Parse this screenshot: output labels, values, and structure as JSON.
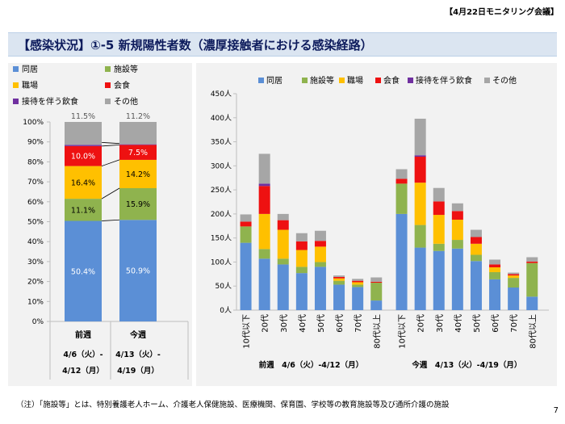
{
  "header": {
    "meeting_label": "【4月22日モニタリング会議】"
  },
  "title": "【感染状況】①-5 新規陽性者数（濃厚接触者における感染経路）",
  "footnote": "（注）「施設等」とは、特別養護老人ホーム、介護老人保健施設、医療機関、保育園、学校等の教育施設等及び通所介護の施設",
  "page_number": "7",
  "colors": {
    "同居": "#5b8fd6",
    "施設等": "#8fb34e",
    "職場": "#ffc000",
    "会食": "#ee1111",
    "接待を伴う飲食": "#7030a0",
    "その他": "#a6a6a6"
  },
  "chart_data": [
    {
      "type": "bar",
      "stacked": true,
      "percent": true,
      "title": "",
      "legend": [
        "同居",
        "施設等",
        "職場",
        "会食",
        "接待を伴う飲食",
        "その他"
      ],
      "legend_placement": "top",
      "categories": [
        "前週",
        "今週"
      ],
      "category_dates": [
        [
          "4/6（火）-",
          "4/12（月）"
        ],
        [
          "4/13（火）-",
          "4/19（月）"
        ]
      ],
      "series": [
        {
          "name": "同居",
          "values": [
            50.4,
            50.9
          ],
          "labels": [
            "50.4%",
            "50.9%"
          ]
        },
        {
          "name": "施設等",
          "values": [
            11.1,
            15.9
          ],
          "labels": [
            "11.1%",
            "15.9%"
          ]
        },
        {
          "name": "職場",
          "values": [
            16.4,
            14.2
          ],
          "labels": [
            "16.4%",
            "14.2%"
          ]
        },
        {
          "name": "会食",
          "values": [
            10.0,
            7.5
          ],
          "labels": [
            "10.0%",
            "7.5%"
          ]
        },
        {
          "name": "接待を伴う飲食",
          "values": [
            0.6,
            0.3
          ],
          "labels": [
            "0.6%",
            "0.3%"
          ]
        },
        {
          "name": "その他",
          "values": [
            11.5,
            11.2
          ],
          "labels": [
            "11.5%",
            "11.2%"
          ]
        }
      ],
      "ylim": [
        0,
        100
      ],
      "yticks": [
        "0%",
        "10%",
        "20%",
        "30%",
        "40%",
        "50%",
        "60%",
        "70%",
        "80%",
        "90%",
        "100%"
      ]
    },
    {
      "type": "bar",
      "stacked": true,
      "title": "",
      "legend": [
        "同居",
        "施設等",
        "職場",
        "会食",
        "接待を伴う飲食",
        "その他"
      ],
      "legend_placement": "top",
      "groups": [
        {
          "label": "前週　4/6（火）-4/12（月）",
          "categories": [
            "10代以下",
            "20代",
            "30代",
            "40代",
            "50代",
            "60代",
            "70代",
            "80代以上"
          ],
          "stacks": [
            [
              140,
              34,
              0,
              10,
              0,
              15
            ],
            [
              107,
              20,
              73,
              58,
              5,
              62
            ],
            [
              95,
              12,
              60,
              20,
              0,
              13
            ],
            [
              77,
              13,
              35,
              18,
              0,
              17
            ],
            [
              90,
              10,
              32,
              12,
              0,
              21
            ],
            [
              53,
              8,
              5,
              3,
              0,
              3
            ],
            [
              48,
              5,
              5,
              3,
              0,
              4
            ],
            [
              20,
              37,
              0,
              2,
              0,
              9
            ]
          ]
        },
        {
          "label": "今週　4/13（火）-4/19（月）",
          "categories": [
            "10代以下",
            "20代",
            "30代",
            "40代",
            "50代",
            "60代",
            "70代",
            "80代以上"
          ],
          "stacks": [
            [
              200,
              63,
              0,
              10,
              0,
              20
            ],
            [
              130,
              47,
              88,
              54,
              3,
              76
            ],
            [
              123,
              15,
              60,
              28,
              0,
              28
            ],
            [
              128,
              18,
              42,
              18,
              0,
              16
            ],
            [
              102,
              13,
              23,
              14,
              0,
              15
            ],
            [
              64,
              15,
              10,
              6,
              0,
              10
            ],
            [
              47,
              20,
              5,
              3,
              0,
              3
            ],
            [
              28,
              70,
              0,
              3,
              0,
              9
            ]
          ]
        }
      ],
      "ylim": [
        0,
        450
      ],
      "yticks": [
        "0人",
        "50人",
        "100人",
        "150人",
        "200人",
        "250人",
        "300人",
        "350人",
        "400人",
        "450人"
      ]
    }
  ]
}
